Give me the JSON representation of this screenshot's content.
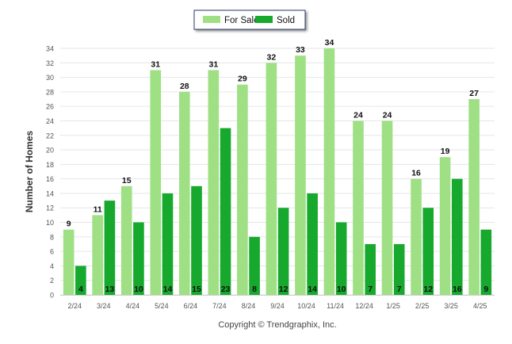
{
  "chart_data": {
    "type": "bar",
    "categories": [
      "2/24",
      "3/24",
      "4/24",
      "5/24",
      "6/24",
      "7/24",
      "8/24",
      "9/24",
      "10/24",
      "11/24",
      "12/24",
      "1/25",
      "2/25",
      "3/25",
      "4/25"
    ],
    "series": [
      {
        "name": "For Sale",
        "color": "#9fe085",
        "values": [
          9,
          11,
          15,
          31,
          28,
          31,
          29,
          32,
          33,
          34,
          24,
          24,
          16,
          19,
          27
        ]
      },
      {
        "name": "Sold",
        "color": "#17a82e",
        "values": [
          4,
          13,
          10,
          14,
          15,
          23,
          8,
          12,
          14,
          10,
          7,
          7,
          12,
          16,
          9
        ]
      }
    ],
    "ylabel": "Number of Homes",
    "xlabel": "",
    "ylim": [
      0,
      34
    ],
    "yticks": [
      0,
      2,
      4,
      6,
      8,
      10,
      12,
      14,
      16,
      18,
      20,
      22,
      24,
      26,
      28,
      30,
      32,
      34
    ],
    "grid": true,
    "legend_position": "top-center",
    "footer": "Copyright © Trendgraphix, Inc."
  }
}
